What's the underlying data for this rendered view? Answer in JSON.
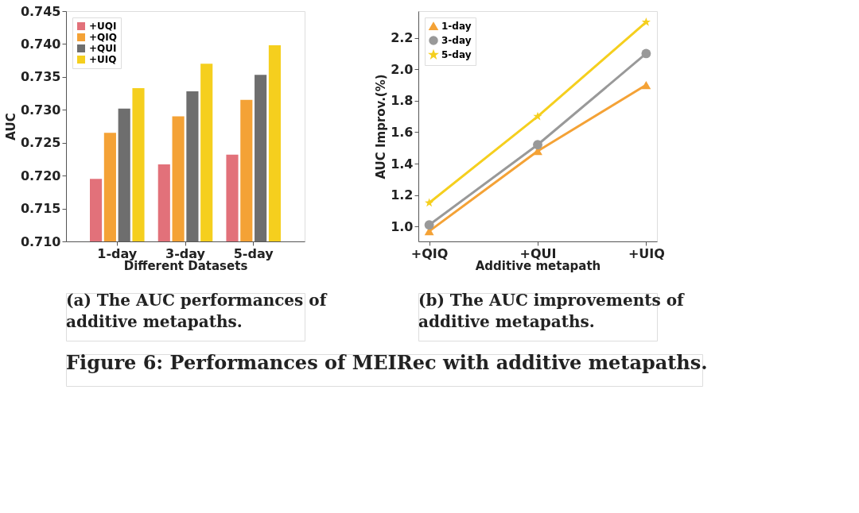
{
  "chart_data": [
    {
      "type": "bar",
      "xlabel": "Different Datasets",
      "ylabel": "AUC",
      "categories": [
        "1-day",
        "3-day",
        "5-day"
      ],
      "series": [
        {
          "name": "+UQI",
          "color": "#e2717a",
          "values": [
            0.7195,
            0.7217,
            0.7232
          ]
        },
        {
          "name": "+QIQ",
          "color": "#f4a236",
          "values": [
            0.7265,
            0.729,
            0.7315
          ]
        },
        {
          "name": "+QUI",
          "color": "#6e6e6e",
          "values": [
            0.7302,
            0.7328,
            0.7353
          ]
        },
        {
          "name": "+UIQ",
          "color": "#f5cf1e",
          "values": [
            0.7333,
            0.737,
            0.7398
          ]
        }
      ],
      "ylim": [
        0.71,
        0.745
      ],
      "yticks": [
        {
          "value": 0.71,
          "label": "0.710"
        },
        0.715,
        {
          "value": 0.72,
          "label": "0.720"
        },
        0.725,
        {
          "value": 0.73,
          "label": "0.730"
        },
        0.735,
        {
          "value": 0.74,
          "label": "0.740"
        },
        0.745
      ],
      "legend": "top left",
      "grid": false,
      "annotations": [
        "(a) The AUC performances of additive metapaths."
      ]
    },
    {
      "type": "line",
      "xlabel": "Additive metapath",
      "ylabel": "AUC Improv.(%)",
      "categories": [
        "+QIQ",
        "+QUI",
        "+UIQ"
      ],
      "series": [
        {
          "name": "1-day",
          "color": "#f4a236",
          "marker": "triangle",
          "values": [
            0.97,
            1.48,
            1.9
          ]
        },
        {
          "name": "3-day",
          "color": "#999999",
          "marker": "circle",
          "values": [
            1.01,
            1.52,
            2.1
          ]
        },
        {
          "name": "5-day",
          "color": "#f5cf1e",
          "marker": "star",
          "values": [
            1.15,
            1.7,
            2.3
          ]
        }
      ],
      "ylim": [
        0.905,
        2.37
      ],
      "yticks": [
        {
          "value": 1.0,
          "label": "1.0"
        },
        1.2,
        1.4,
        1.6,
        1.8,
        {
          "value": 2.0,
          "label": "2.0"
        },
        2.2
      ],
      "legend": "top left",
      "grid": false,
      "line_style": "solid",
      "annotations": [
        "(b) The AUC improvements of additive metapaths.",
        "Figure 6: Performances of MEIRec with additive metapaths."
      ]
    }
  ]
}
